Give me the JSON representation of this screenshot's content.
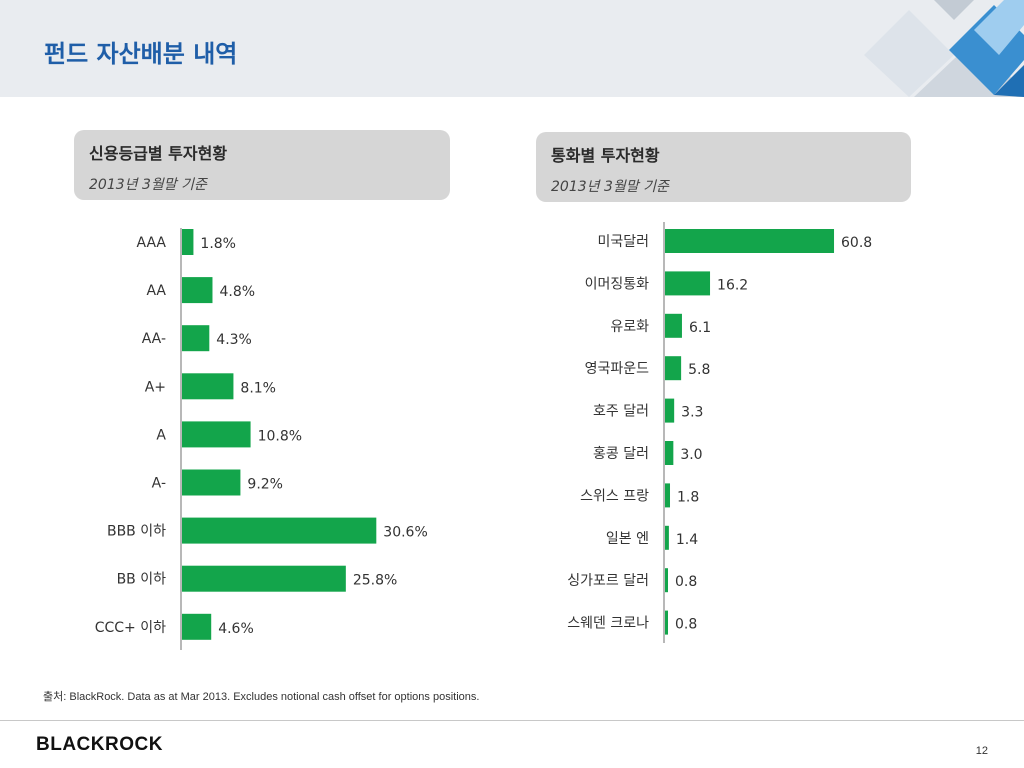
{
  "page": {
    "title": "펀드 자산배분 내역",
    "footnote": "출처: BlackRock. Data as at Mar 2013. Excludes notional cash offset for options positions.",
    "logo": "BLACKROCK",
    "page_number": "12"
  },
  "colors": {
    "bar": "#13a54b",
    "header_bg": "#e9ecf0",
    "title": "#1f5ea8"
  },
  "panels": {
    "credit": {
      "title": "신용등급별 투자현황",
      "subtitle": "2013년 3월말 기준"
    },
    "currency": {
      "title": "통화별 투자현황",
      "subtitle": "2013년 3월말 기준"
    }
  },
  "chart_data": [
    {
      "type": "bar",
      "orientation": "horizontal",
      "title": "신용등급별 투자현황",
      "categories": [
        "AAA",
        "AA",
        "AA-",
        "A+",
        "A",
        "A-",
        "BBB 이하",
        "BB 이하",
        "CCC+ 이하"
      ],
      "values": [
        1.8,
        4.8,
        4.3,
        8.1,
        10.8,
        9.2,
        30.6,
        25.8,
        4.6
      ],
      "labels": [
        "1.8%",
        "4.8%",
        "4.3%",
        "8.1%",
        "10.8%",
        "9.2%",
        "30.6%",
        "25.8%",
        "4.6%"
      ],
      "grid": false
    },
    {
      "type": "bar",
      "orientation": "horizontal",
      "title": "통화별 투자현황",
      "categories": [
        "미국달러",
        "이머징통화",
        "유로화",
        "영국파운드",
        "호주 달러",
        "홍콩 달러",
        "스위스 프랑",
        "일본 엔",
        "싱가포르 달러",
        "스웨덴 크로나"
      ],
      "values": [
        60.8,
        16.2,
        6.1,
        5.8,
        3.3,
        3.0,
        1.8,
        1.4,
        0.8,
        0.8
      ],
      "labels": [
        "60.8",
        "16.2",
        "6.1",
        "5.8",
        "3.3",
        "3.0",
        "1.8",
        "1.4",
        "0.8",
        "0.8"
      ],
      "grid": false
    }
  ]
}
